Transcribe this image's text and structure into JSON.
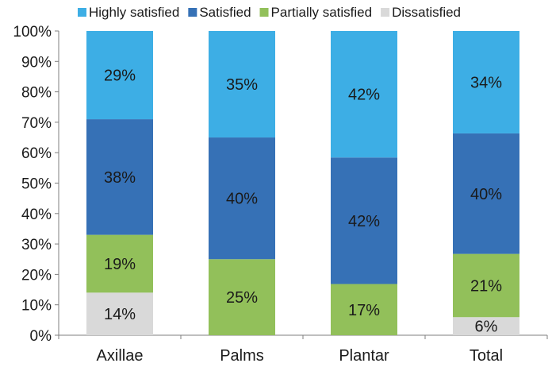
{
  "chart_data": {
    "type": "bar",
    "stacked": true,
    "percent_stacked": true,
    "categories": [
      "Axillae",
      "Palms",
      "Plantar",
      "Total"
    ],
    "series": [
      {
        "name": "Dissatisfied",
        "values": [
          14,
          0,
          0,
          6
        ],
        "labels": [
          "14%",
          "",
          "",
          "6%"
        ],
        "color": "#d9d9d9"
      },
      {
        "name": "Partially satisfied",
        "values": [
          19,
          25,
          17,
          21
        ],
        "labels": [
          "19%",
          "25%",
          "17%",
          "21%"
        ],
        "color": "#92c05a"
      },
      {
        "name": "Satisfied",
        "values": [
          38,
          40,
          42,
          40
        ],
        "labels": [
          "38%",
          "40%",
          "42%",
          "40%"
        ],
        "color": "#3671b6"
      },
      {
        "name": "Highly satisfied",
        "values": [
          29,
          35,
          42,
          34
        ],
        "labels": [
          "29%",
          "35%",
          "42%",
          "34%"
        ],
        "color": "#3daee5"
      }
    ],
    "legend_order": [
      "Highly satisfied",
      "Satisfied",
      "Partially satisfied",
      "Dissatisfied"
    ],
    "y_ticks": [
      "0%",
      "10%",
      "20%",
      "30%",
      "40%",
      "50%",
      "60%",
      "70%",
      "80%",
      "90%",
      "100%"
    ],
    "ylim": [
      0,
      100
    ],
    "legend_position": "top",
    "grid": false,
    "title": "",
    "xlabel": "",
    "ylabel": ""
  }
}
